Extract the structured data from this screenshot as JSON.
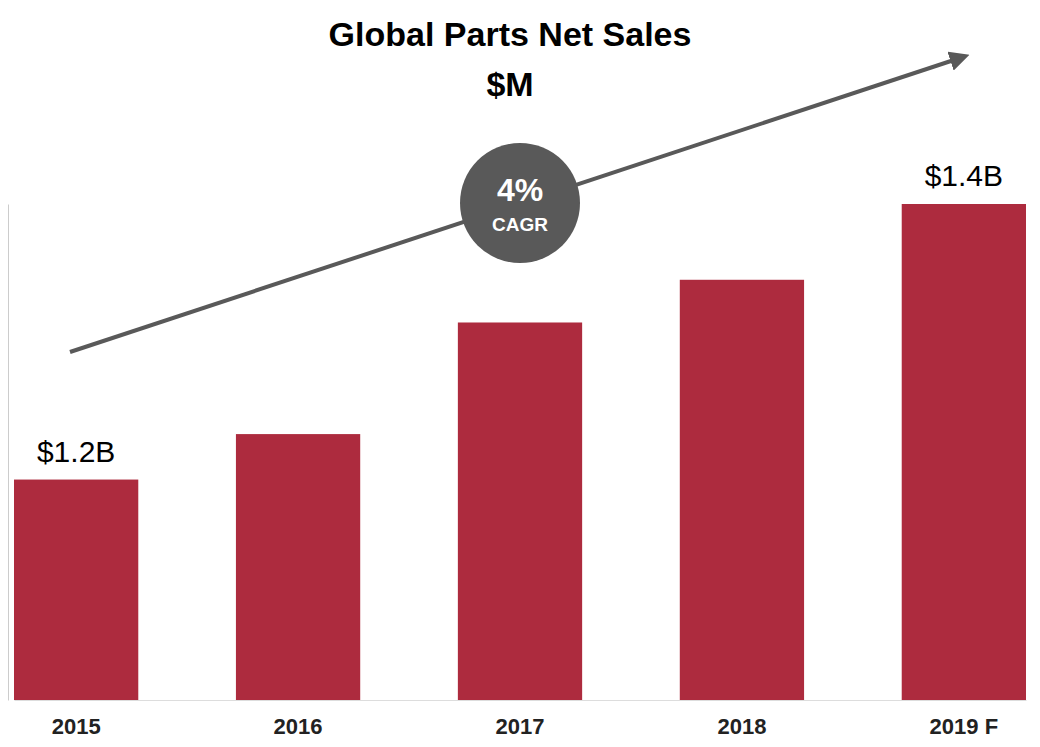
{
  "chart_data": {
    "type": "bar",
    "title": "Global Parts Net Sales",
    "subtitle": "$M",
    "categories": [
      "2015",
      "2016",
      "2017",
      "2018",
      "2019 F"
    ],
    "values": [
      1200,
      1233,
      1314,
      1345,
      1400
    ],
    "value_labels": [
      "$1.2B",
      null,
      null,
      null,
      "$1.4B"
    ],
    "data_labels": true,
    "color": "#ad2b3e",
    "ylim": [
      1040,
      1400
    ],
    "tick_labels": "x",
    "grid": false,
    "annotation": [
      "4%",
      "CAGR"
    ]
  }
}
